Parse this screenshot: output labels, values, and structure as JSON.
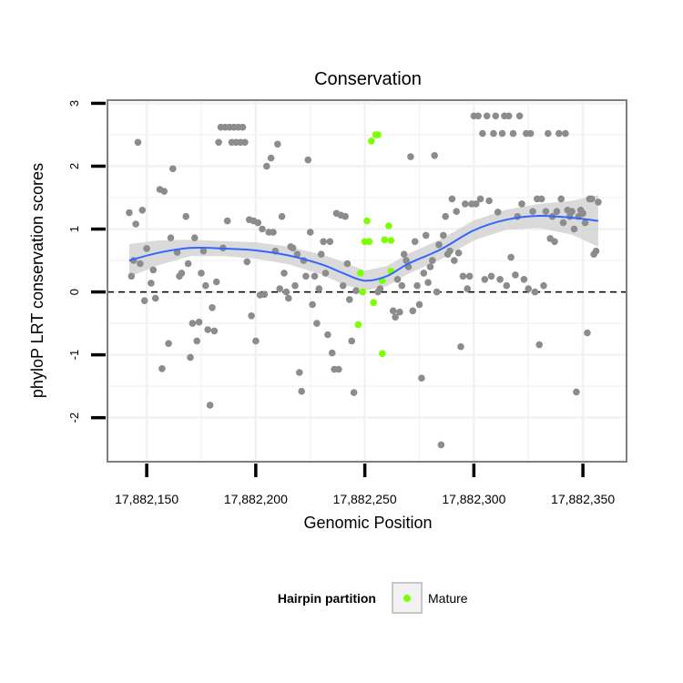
{
  "chart_data": {
    "type": "scatter",
    "title": "Conservation",
    "xlabel": "Genomic Position",
    "ylabel": "phyloP LRT conservation scores",
    "xlim": [
      17882132,
      17882370
    ],
    "ylim": [
      -2.7,
      3.05
    ],
    "x_ticks": [
      17882150,
      17882200,
      17882250,
      17882300,
      17882350
    ],
    "x_tick_labels": [
      "17,882,150",
      "17,882,200",
      "17,882,250",
      "17,882,300",
      "17,882,350"
    ],
    "y_ticks": [
      -2,
      -1,
      0,
      1,
      2,
      3
    ],
    "y_tick_labels": [
      "-2",
      "-1",
      "0",
      "1",
      "2",
      "3"
    ],
    "grid": true,
    "reference_line": {
      "y": 0,
      "style": "dashed"
    },
    "colors": {
      "other": "#8c8c8c",
      "mature": "#7cff00",
      "smooth": "#3366ff",
      "ribbon": "#d3d3d3",
      "panel_border": "#7f7f7f",
      "grid": "#f2f2f2"
    },
    "legend": {
      "title": "Hairpin partition",
      "entries": [
        "Mature"
      ],
      "placement": "bottom"
    },
    "series": [
      {
        "name": "Mature",
        "points": [
          [
            17882251,
            1.13
          ],
          [
            17882252,
            0.8
          ],
          [
            17882250,
            0.8
          ],
          [
            17882248,
            0.3
          ],
          [
            17882247,
            -0.52
          ],
          [
            17882254,
            -0.17
          ],
          [
            17882258,
            -0.98
          ],
          [
            17882261,
            1.05
          ],
          [
            17882259,
            0.83
          ],
          [
            17882262,
            0.82
          ],
          [
            17882262,
            0.33
          ],
          [
            17882256,
            2.5
          ],
          [
            17882255,
            2.5
          ],
          [
            17882253,
            2.4
          ],
          [
            17882258,
            0.18
          ],
          [
            17882249,
            0.0
          ]
        ]
      },
      {
        "name": "",
        "points": [
          [
            17882142,
            1.26
          ],
          [
            17882143,
            0.25
          ],
          [
            17882144,
            0.5
          ],
          [
            17882145,
            1.08
          ],
          [
            17882146,
            2.38
          ],
          [
            17882148,
            1.3
          ],
          [
            17882149,
            -0.14
          ],
          [
            17882150,
            0.69
          ],
          [
            17882147,
            0.45
          ],
          [
            17882152,
            0.14
          ],
          [
            17882153,
            0.35
          ],
          [
            17882154,
            -0.1
          ],
          [
            17882156,
            1.63
          ],
          [
            17882157,
            -1.22
          ],
          [
            17882158,
            1.6
          ],
          [
            17882160,
            -0.82
          ],
          [
            17882161,
            0.86
          ],
          [
            17882162,
            1.96
          ],
          [
            17882164,
            0.63
          ],
          [
            17882165,
            0.25
          ],
          [
            17882166,
            0.3
          ],
          [
            17882168,
            1.2
          ],
          [
            17882169,
            0.45
          ],
          [
            17882170,
            -1.04
          ],
          [
            17882171,
            -0.5
          ],
          [
            17882172,
            0.86
          ],
          [
            17882173,
            -0.78
          ],
          [
            17882174,
            -0.48
          ],
          [
            17882175,
            0.3
          ],
          [
            17882176,
            0.65
          ],
          [
            17882177,
            0.1
          ],
          [
            17882178,
            -0.6
          ],
          [
            17882179,
            -1.8
          ],
          [
            17882180,
            -0.25
          ],
          [
            17882181,
            -0.62
          ],
          [
            17882182,
            0.16
          ],
          [
            17882183,
            2.38
          ],
          [
            17882184,
            2.62
          ],
          [
            17882185,
            0.7
          ],
          [
            17882186,
            2.62
          ],
          [
            17882187,
            1.13
          ],
          [
            17882188,
            2.62
          ],
          [
            17882189,
            2.38
          ],
          [
            17882190,
            2.62
          ],
          [
            17882191,
            2.38
          ],
          [
            17882192,
            2.62
          ],
          [
            17882193,
            2.38
          ],
          [
            17882194,
            2.62
          ],
          [
            17882195,
            2.38
          ],
          [
            17882196,
            0.48
          ],
          [
            17882197,
            1.15
          ],
          [
            17882198,
            -0.38
          ],
          [
            17882199,
            1.13
          ],
          [
            17882200,
            -0.78
          ],
          [
            17882201,
            1.1
          ],
          [
            17882202,
            -0.05
          ],
          [
            17882203,
            1.0
          ],
          [
            17882204,
            -0.04
          ],
          [
            17882205,
            2.0
          ],
          [
            17882206,
            0.95
          ],
          [
            17882207,
            2.13
          ],
          [
            17882208,
            0.95
          ],
          [
            17882209,
            0.65
          ],
          [
            17882210,
            2.35
          ],
          [
            17882211,
            0.05
          ],
          [
            17882212,
            1.2
          ],
          [
            17882213,
            0.3
          ],
          [
            17882214,
            0.0
          ],
          [
            17882215,
            -0.1
          ],
          [
            17882216,
            0.72
          ],
          [
            17882217,
            0.7
          ],
          [
            17882218,
            0.1
          ],
          [
            17882219,
            0.6
          ],
          [
            17882220,
            -1.28
          ],
          [
            17882221,
            -1.58
          ],
          [
            17882222,
            0.5
          ],
          [
            17882223,
            0.25
          ],
          [
            17882224,
            2.1
          ],
          [
            17882225,
            0.95
          ],
          [
            17882226,
            -0.2
          ],
          [
            17882227,
            0.25
          ],
          [
            17882228,
            -0.5
          ],
          [
            17882229,
            0.05
          ],
          [
            17882230,
            0.6
          ],
          [
            17882231,
            0.8
          ],
          [
            17882232,
            0.3
          ],
          [
            17882233,
            -0.68
          ],
          [
            17882234,
            0.8
          ],
          [
            17882235,
            -0.97
          ],
          [
            17882236,
            -1.23
          ],
          [
            17882237,
            1.25
          ],
          [
            17882238,
            -1.23
          ],
          [
            17882239,
            1.22
          ],
          [
            17882240,
            0.1
          ],
          [
            17882241,
            1.2
          ],
          [
            17882242,
            0.45
          ],
          [
            17882243,
            -0.12
          ],
          [
            17882244,
            -0.78
          ],
          [
            17882245,
            -1.6
          ],
          [
            17882246,
            0.02
          ],
          [
            17882256,
            0.0
          ],
          [
            17882257,
            0.05
          ],
          [
            17882263,
            -0.3
          ],
          [
            17882264,
            -0.4
          ],
          [
            17882265,
            0.2
          ],
          [
            17882266,
            -0.32
          ],
          [
            17882267,
            0.1
          ],
          [
            17882268,
            0.6
          ],
          [
            17882269,
            0.5
          ],
          [
            17882270,
            0.4
          ],
          [
            17882271,
            2.15
          ],
          [
            17882272,
            -0.3
          ],
          [
            17882273,
            0.8
          ],
          [
            17882274,
            0.1
          ],
          [
            17882275,
            -0.2
          ],
          [
            17882276,
            -1.37
          ],
          [
            17882277,
            0.3
          ],
          [
            17882278,
            0.9
          ],
          [
            17882279,
            0.15
          ],
          [
            17882280,
            0.4
          ],
          [
            17882281,
            0.5
          ],
          [
            17882282,
            2.17
          ],
          [
            17882283,
            0.0
          ],
          [
            17882284,
            0.75
          ],
          [
            17882285,
            -2.43
          ],
          [
            17882286,
            0.9
          ],
          [
            17882287,
            1.2
          ],
          [
            17882288,
            0.6
          ],
          [
            17882289,
            0.65
          ],
          [
            17882290,
            1.48
          ],
          [
            17882291,
            0.5
          ],
          [
            17882292,
            1.28
          ],
          [
            17882293,
            0.62
          ],
          [
            17882294,
            -0.87
          ],
          [
            17882295,
            0.25
          ],
          [
            17882296,
            1.4
          ],
          [
            17882297,
            0.05
          ],
          [
            17882298,
            0.25
          ],
          [
            17882299,
            1.4
          ],
          [
            17882300,
            2.8
          ],
          [
            17882301,
            1.4
          ],
          [
            17882302,
            2.8
          ],
          [
            17882303,
            1.48
          ],
          [
            17882304,
            2.52
          ],
          [
            17882305,
            0.2
          ],
          [
            17882306,
            2.8
          ],
          [
            17882307,
            1.45
          ],
          [
            17882308,
            0.25
          ],
          [
            17882309,
            2.52
          ],
          [
            17882310,
            2.8
          ],
          [
            17882311,
            1.27
          ],
          [
            17882312,
            0.2
          ],
          [
            17882313,
            2.52
          ],
          [
            17882314,
            2.8
          ],
          [
            17882315,
            0.1
          ],
          [
            17882316,
            2.8
          ],
          [
            17882317,
            0.55
          ],
          [
            17882318,
            2.52
          ],
          [
            17882319,
            0.27
          ],
          [
            17882320,
            1.2
          ],
          [
            17882321,
            2.8
          ],
          [
            17882322,
            1.4
          ],
          [
            17882323,
            0.2
          ],
          [
            17882324,
            2.52
          ],
          [
            17882325,
            0.05
          ],
          [
            17882326,
            2.52
          ],
          [
            17882327,
            1.28
          ],
          [
            17882328,
            0.0
          ],
          [
            17882329,
            1.48
          ],
          [
            17882330,
            -0.84
          ],
          [
            17882331,
            1.48
          ],
          [
            17882332,
            0.1
          ],
          [
            17882333,
            1.28
          ],
          [
            17882334,
            2.52
          ],
          [
            17882335,
            0.85
          ],
          [
            17882336,
            1.2
          ],
          [
            17882337,
            0.8
          ],
          [
            17882338,
            1.28
          ],
          [
            17882339,
            2.52
          ],
          [
            17882340,
            1.48
          ],
          [
            17882341,
            1.1
          ],
          [
            17882342,
            2.52
          ],
          [
            17882343,
            1.3
          ],
          [
            17882344,
            1.2
          ],
          [
            17882345,
            1.28
          ],
          [
            17882346,
            1.0
          ],
          [
            17882347,
            -1.59
          ],
          [
            17882348,
            1.2
          ],
          [
            17882349,
            1.3
          ],
          [
            17882350,
            1.25
          ],
          [
            17882351,
            1.1
          ],
          [
            17882352,
            -0.65
          ],
          [
            17882353,
            1.48
          ],
          [
            17882354,
            1.48
          ],
          [
            17882355,
            0.6
          ],
          [
            17882356,
            0.65
          ],
          [
            17882357,
            1.43
          ]
        ]
      }
    ],
    "smooth_curve": {
      "x": [
        17882142,
        17882155,
        17882170,
        17882185,
        17882200,
        17882215,
        17882230,
        17882240,
        17882250,
        17882260,
        17882270,
        17882285,
        17882300,
        17882315,
        17882330,
        17882345,
        17882357
      ],
      "y": [
        0.5,
        0.62,
        0.7,
        0.69,
        0.66,
        0.58,
        0.44,
        0.3,
        0.18,
        0.25,
        0.45,
        0.68,
        0.98,
        1.15,
        1.21,
        1.18,
        1.13
      ],
      "lower": [
        0.24,
        0.42,
        0.57,
        0.57,
        0.53,
        0.44,
        0.28,
        0.12,
        0.02,
        0.09,
        0.29,
        0.52,
        0.82,
        0.99,
        1.02,
        0.91,
        0.72
      ],
      "upper": [
        0.76,
        0.82,
        0.83,
        0.81,
        0.79,
        0.72,
        0.6,
        0.48,
        0.34,
        0.41,
        0.61,
        0.84,
        1.14,
        1.31,
        1.4,
        1.45,
        1.54
      ]
    }
  }
}
